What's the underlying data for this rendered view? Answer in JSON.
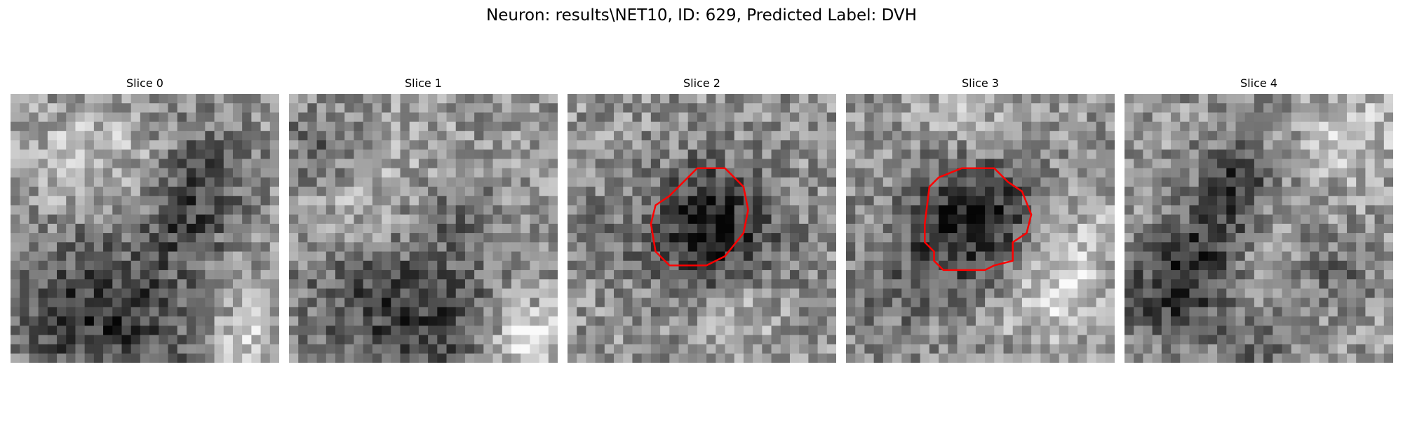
{
  "figure": {
    "suptitle": "Neuron: results\\NET10, ID: 629, Predicted Label: DVH"
  },
  "panels": [
    {
      "title": "Slice 0",
      "has_outline": false
    },
    {
      "title": "Slice 1",
      "has_outline": false
    },
    {
      "title": "Slice 2",
      "has_outline": true
    },
    {
      "title": "Slice 3",
      "has_outline": true
    },
    {
      "title": "Slice 4",
      "has_outline": false
    }
  ],
  "colors": {
    "background": "#ffffff",
    "colormap": "gray",
    "outline": "#ff0000"
  }
}
